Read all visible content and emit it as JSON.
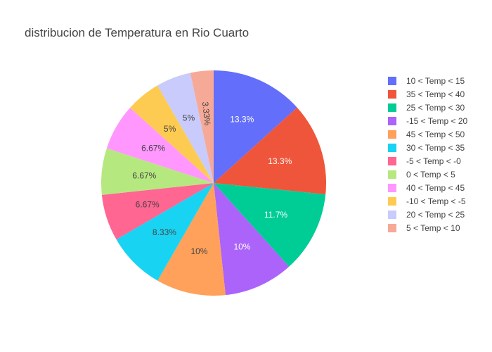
{
  "chart_data": {
    "type": "pie",
    "title": "distribucion de Temperatura en Rio Cuarto",
    "legend_position": "right",
    "slices": [
      {
        "label": "10 < Temp < 15",
        "percent": 13.3,
        "text": "13.3%",
        "color": "#636efa"
      },
      {
        "label": "35 < Temp < 40",
        "percent": 13.3,
        "text": "13.3%",
        "color": "#EF553B"
      },
      {
        "label": "25 < Temp < 30",
        "percent": 11.7,
        "text": "11.7%",
        "color": "#00cc96"
      },
      {
        "label": "-15 < Temp < 20",
        "percent": 10,
        "text": "10%",
        "color": "#ab63fa"
      },
      {
        "label": "45 < Temp < 50",
        "percent": 10,
        "text": "10%",
        "color": "#FFA15A"
      },
      {
        "label": "30 < Temp < 35",
        "percent": 8.33,
        "text": "8.33%",
        "color": "#19d3f3"
      },
      {
        "label": "-5 < Temp < -0",
        "percent": 6.67,
        "text": "6.67%",
        "color": "#FF6692"
      },
      {
        "label": "0 < Temp < 5",
        "percent": 6.67,
        "text": "6.67%",
        "color": "#B6E880"
      },
      {
        "label": "40 < Temp < 45",
        "percent": 6.67,
        "text": "6.67%",
        "color": "#FF97FF"
      },
      {
        "label": "-10 < Temp < -5",
        "percent": 5,
        "text": "5%",
        "color": "#FECB52"
      },
      {
        "label": "20 < Temp < 25",
        "percent": 5,
        "text": "5%",
        "color": "#c8cbfb"
      },
      {
        "label": "5 < Temp < 10",
        "percent": 3.33,
        "text": "3.33%",
        "color": "#f7a998"
      }
    ]
  }
}
